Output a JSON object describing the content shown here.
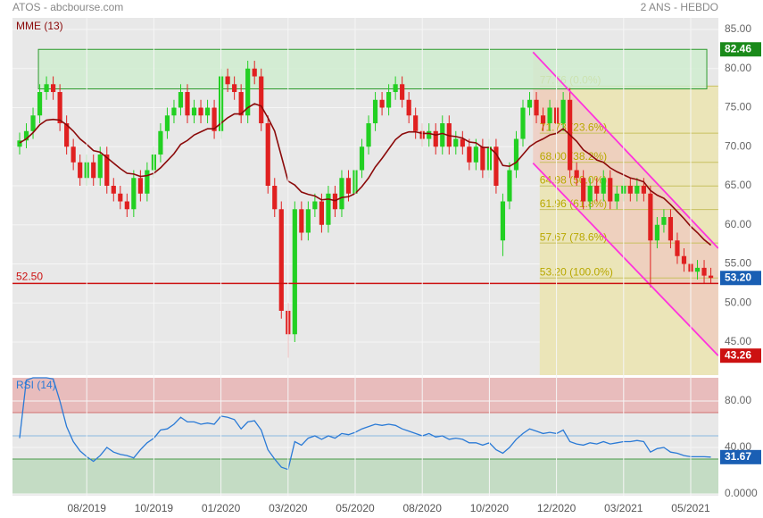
{
  "header": {
    "title": "ATOS - abcbourse.com",
    "period": "2 ANS - HEBDO"
  },
  "chart_data": [
    {
      "type": "candlestick",
      "categories": [
        null,
        null,
        null,
        null,
        null,
        null,
        null,
        null,
        null,
        null,
        "08/2019",
        null,
        null,
        null,
        null,
        null,
        null,
        null,
        null,
        null,
        "10/2019",
        null,
        null,
        null,
        null,
        null,
        null,
        null,
        null,
        null,
        "01/2020",
        null,
        null,
        null,
        null,
        null,
        null,
        null,
        null,
        null,
        "03/2020",
        null,
        null,
        null,
        null,
        null,
        null,
        null,
        null,
        null,
        "05/2020",
        null,
        null,
        null,
        null,
        null,
        null,
        null,
        null,
        null,
        "08/2020",
        null,
        null,
        null,
        null,
        null,
        null,
        null,
        null,
        null,
        "10/2020",
        null,
        null,
        null,
        null,
        null,
        null,
        null,
        null,
        null,
        "12/2020",
        null,
        null,
        null,
        null,
        null,
        null,
        null,
        null,
        null,
        "03/2021",
        null,
        null,
        null,
        null,
        null,
        null,
        null,
        null,
        null,
        "05/2021",
        null,
        null,
        null
      ],
      "open": [
        70,
        70.8,
        72,
        74,
        77,
        78,
        77,
        73,
        70,
        68,
        66,
        68,
        66,
        69,
        65,
        64,
        63,
        62,
        66,
        64,
        67,
        69,
        72,
        74,
        75,
        77,
        74,
        75,
        74,
        75,
        72,
        79,
        78,
        77,
        74,
        80,
        79,
        73,
        65,
        62,
        49,
        46,
        62,
        59,
        62,
        63,
        60,
        64,
        62,
        66,
        64,
        67,
        70,
        73,
        76,
        75,
        77,
        78,
        76,
        74,
        72,
        71,
        72,
        70,
        73,
        70,
        71,
        70,
        68,
        70,
        67,
        70,
        58,
        63,
        67,
        71,
        75,
        76,
        74,
        73,
        75,
        73,
        76,
        67,
        66,
        63,
        65,
        64,
        66,
        63,
        64,
        65,
        64,
        65,
        64,
        58,
        60,
        61,
        58,
        56,
        55,
        54,
        54.5,
        53.5
      ],
      "high": [
        71.8,
        73,
        75,
        78,
        79,
        79,
        78,
        74,
        71,
        69,
        69,
        69,
        70,
        70,
        66,
        65,
        64,
        67,
        67,
        68,
        70,
        73,
        75,
        76,
        78,
        78,
        76,
        76,
        76,
        76,
        80,
        80,
        79,
        78,
        81,
        81,
        80,
        74,
        66,
        63,
        50,
        63,
        63,
        63,
        64,
        64,
        65,
        65,
        67,
        67,
        68,
        71,
        74,
        77,
        77,
        78,
        79,
        79,
        77,
        75,
        73,
        73,
        73,
        74,
        74,
        72,
        72,
        71,
        71,
        71,
        71,
        71,
        64,
        68,
        72,
        76,
        77,
        77,
        75,
        76,
        76,
        77,
        77.5,
        68,
        67,
        66,
        66,
        67,
        67,
        65,
        66,
        66,
        66,
        66,
        65,
        61,
        62,
        62,
        59,
        57,
        56,
        55.5,
        55.5,
        54.5
      ],
      "low": [
        69,
        69.8,
        71,
        73,
        76,
        76,
        72,
        69,
        67,
        65,
        65,
        65,
        65,
        64,
        63,
        62,
        61,
        61,
        63,
        63,
        66,
        68,
        71,
        73,
        74,
        73,
        73,
        73,
        73,
        71,
        71,
        77,
        76,
        73,
        73,
        78,
        72,
        64,
        61,
        48,
        43,
        45,
        58,
        58,
        61,
        59,
        59,
        61,
        61,
        63,
        63,
        66,
        69,
        72,
        74,
        74,
        76,
        75,
        73,
        71,
        70,
        70,
        69,
        69,
        69,
        69,
        69,
        67,
        67,
        66,
        66,
        64,
        56,
        62,
        66,
        70,
        74,
        73,
        72,
        72,
        72,
        72,
        66,
        65,
        62,
        62,
        63,
        63,
        62,
        62,
        63,
        63,
        63,
        63,
        52,
        57,
        59,
        57,
        55,
        54,
        53,
        53,
        52.5,
        52.5
      ],
      "close": [
        70.8,
        72,
        74,
        77,
        78,
        77,
        73,
        70,
        68,
        66,
        68,
        66,
        69,
        65,
        64,
        63,
        62,
        66,
        64,
        67,
        69,
        72,
        74,
        75,
        77,
        74,
        75,
        74,
        75,
        72,
        79,
        78,
        77,
        74,
        80,
        79,
        73,
        65,
        62,
        49,
        46,
        62,
        59,
        62,
        63,
        60,
        64,
        62,
        66,
        64,
        67,
        70,
        73,
        76,
        75,
        77,
        78,
        76,
        74,
        72,
        71,
        72,
        70,
        73,
        70,
        71,
        70,
        68,
        70,
        67,
        70,
        65,
        63,
        67,
        71,
        75,
        76,
        74,
        73,
        75,
        73,
        76,
        67,
        66,
        63,
        65,
        64,
        66,
        63,
        64,
        65,
        64,
        65,
        64,
        58,
        60,
        61,
        58,
        56,
        55,
        54,
        54.5,
        53.5,
        53.2
      ],
      "up_color": "#22d022",
      "down_color": "#e02020",
      "series": [
        {
          "name": "MME (13)",
          "color": "#8b0a0a",
          "values": [
            70.5,
            71,
            71.8,
            72.8,
            73.4,
            73.5,
            73.4,
            72.8,
            72,
            71,
            70.3,
            69.5,
            69.3,
            68.6,
            67.9,
            67.2,
            66.6,
            66.5,
            66.2,
            66.3,
            66.6,
            67.3,
            68.2,
            69.1,
            70.3,
            70.8,
            71.5,
            71.9,
            72.3,
            72.3,
            73,
            73.7,
            74.2,
            74.2,
            75,
            75.5,
            75.2,
            73.7,
            72,
            68.8,
            65.6,
            65.1,
            64.2,
            63.9,
            63.7,
            63.2,
            63.3,
            63.1,
            63.5,
            63.6,
            64,
            64.9,
            66,
            67.4,
            68.5,
            69.7,
            70.9,
            71.6,
            71.9,
            71.9,
            71.7,
            71.7,
            71.5,
            71.7,
            71.4,
            71.3,
            71.1,
            70.6,
            70.5,
            69.9,
            69.9,
            69.1,
            67.6,
            67.5,
            68,
            69,
            70,
            70.6,
            71,
            71.5,
            71.7,
            72.3,
            71.5,
            70.7,
            69.6,
            69,
            68.3,
            68,
            67.3,
            66.8,
            66.4,
            66,
            65.8,
            65.5,
            64.4,
            63.8,
            63.4,
            62.6,
            61.7,
            60.8,
            59.8,
            59,
            58.1,
            57.4
          ]
        }
      ],
      "ylim": [
        40.77,
        86.49
      ],
      "yticks": [
        {
          "value": 45,
          "label": "45.00"
        },
        {
          "value": 50,
          "label": "50.00"
        },
        {
          "value": 55,
          "label": "55.00"
        },
        {
          "value": 60,
          "label": "60.00"
        },
        {
          "value": 65,
          "label": "65.00"
        },
        {
          "value": 70,
          "label": "70.00"
        },
        {
          "value": 75,
          "label": "75.00"
        },
        {
          "value": 80,
          "label": "80.00"
        },
        {
          "value": 85,
          "label": "85.00"
        }
      ],
      "grid": true,
      "zone": {
        "x": [
          2.8,
          102.4
        ],
        "values": [
          77.4,
          82.46
        ],
        "color": "#cfeccf",
        "edge": "#2e9a2e"
      },
      "hline": {
        "value": 52.5,
        "label": "52.50",
        "color": "#cc1111"
      },
      "fibonacci": {
        "x": [
          77.5,
          104.1
        ],
        "color": "#ebe5b8",
        "line": "#c8c060",
        "text": "#b8a800",
        "levels": [
          {
            "value": 77.76,
            "label": "77.76  (0.0%)"
          },
          {
            "value": 71.73,
            "label": "71.73  (23.6%)"
          },
          {
            "value": 68,
            "label": "68.00  (38.2%)"
          },
          {
            "value": 64.98,
            "label": "64.98  (50.0%)"
          },
          {
            "value": 61.96,
            "label": "61.96  (61.8%)"
          },
          {
            "value": 57.67,
            "label": "57.67  (78.6%)"
          },
          {
            "value": 53.2,
            "label": "53.20  (100.0%)"
          }
        ]
      },
      "channel": {
        "color": "#ff33dd",
        "fill": "#efcabf",
        "lines": [
          {
            "x": [
              76.5,
              104.1
            ],
            "values": [
              82.1,
              57
            ]
          },
          {
            "x": [
              76.5,
              104.1
            ],
            "values": [
              67.9,
              43.26
            ]
          }
        ]
      },
      "markers": [
        {
          "value": 82.46,
          "label": "82.46",
          "color": "#1a8a1a"
        },
        {
          "value": 53.2,
          "label": "53.20",
          "color": "#1a5fb4"
        },
        {
          "value": 43.26,
          "label": "43.26",
          "color": "#cc1111"
        }
      ]
    },
    {
      "type": "line",
      "series": [
        {
          "name": "RSI (14)",
          "color": "#2a7ad6",
          "values": [
            48,
            98,
            100,
            100,
            100,
            99,
            80,
            58,
            45,
            37,
            32,
            28,
            33,
            40,
            36,
            34,
            33,
            31,
            38,
            44,
            48,
            55,
            56,
            60,
            66,
            62,
            62,
            60,
            61,
            60,
            67,
            66,
            64,
            56,
            62,
            63,
            55,
            38,
            30,
            23,
            21,
            45,
            42,
            48,
            50,
            47,
            50,
            48,
            52,
            51,
            53,
            56,
            58,
            60,
            59,
            60,
            59,
            56,
            54,
            52,
            50,
            52,
            49,
            50,
            47,
            48,
            47,
            44,
            44,
            42,
            44,
            38,
            35,
            40,
            47,
            52,
            56,
            54,
            52,
            53,
            52,
            55,
            45,
            43,
            42,
            44,
            43,
            45,
            43,
            44,
            45,
            45,
            46,
            45,
            36,
            39,
            40,
            36,
            35,
            33,
            32,
            32,
            32,
            31.67
          ]
        }
      ],
      "ylim": [
        0,
        100
      ],
      "yticks": [
        {
          "value": 0,
          "label": "0.0000"
        },
        {
          "value": 40,
          "label": "40.00"
        },
        {
          "value": 80,
          "label": "80.00"
        }
      ],
      "grid": true,
      "zones": [
        {
          "from": 70,
          "to": 100,
          "color": "#e8bcbc",
          "edge": "#d07070"
        },
        {
          "from": 0,
          "to": 30,
          "color": "#c4dcc4",
          "edge": "#4a9a4a"
        }
      ],
      "midline": {
        "value": 50,
        "color": "#8ab8e0"
      },
      "markers": [
        {
          "value": 31.67,
          "label": "31.67",
          "color": "#1a5fb4"
        }
      ]
    }
  ]
}
